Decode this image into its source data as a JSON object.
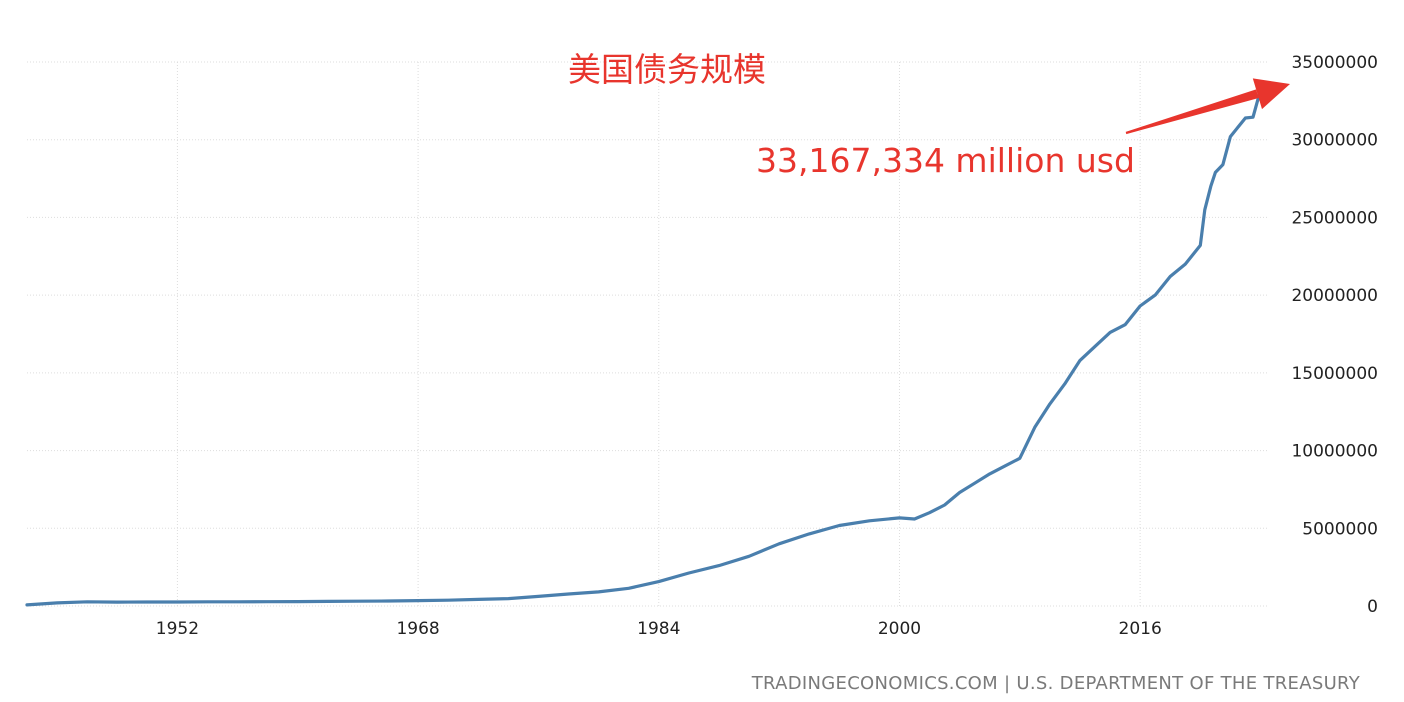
{
  "chart_data": {
    "type": "line",
    "title": "美国债务规模",
    "annotation": "33,167,334 million usd",
    "source": "TRADINGECONOMICS.COM | U.S. DEPARTMENT OF THE TREASURY",
    "xlabel": "",
    "ylabel": "",
    "xlim": [
      1942,
      2024.5
    ],
    "ylim": [
      0,
      35000000
    ],
    "x_ticks": [
      1952,
      1968,
      1984,
      2000,
      2016
    ],
    "y_ticks": [
      0,
      5000000,
      10000000,
      15000000,
      20000000,
      25000000,
      30000000,
      35000000
    ],
    "y_tick_labels": [
      "0",
      "5000000",
      "10000000",
      "15000000",
      "20000000",
      "25000000",
      "30000000",
      "35000000"
    ],
    "grid": true,
    "y_axis_side": "right",
    "series": [
      {
        "values": [
          [
            1942.0,
            72000
          ],
          [
            1944.0,
            201000
          ],
          [
            1946.0,
            269000
          ],
          [
            1948.0,
            252000
          ],
          [
            1950.0,
            257000
          ],
          [
            1952.0,
            259000
          ],
          [
            1954.0,
            271000
          ],
          [
            1956.0,
            272000
          ],
          [
            1958.0,
            276000
          ],
          [
            1960.0,
            286000
          ],
          [
            1962.0,
            298000
          ],
          [
            1964.0,
            311000
          ],
          [
            1966.0,
            320000
          ],
          [
            1968.0,
            347000
          ],
          [
            1970.0,
            370000
          ],
          [
            1972.0,
            427000
          ],
          [
            1974.0,
            475000
          ],
          [
            1976.0,
            620000
          ],
          [
            1978.0,
            771000
          ],
          [
            1980.0,
            907000
          ],
          [
            1982.0,
            1140000
          ],
          [
            1984.0,
            1570000
          ],
          [
            1986.0,
            2120000
          ],
          [
            1988.0,
            2600000
          ],
          [
            1990.0,
            3200000
          ],
          [
            1992.0,
            4000000
          ],
          [
            1994.0,
            4640000
          ],
          [
            1996.0,
            5180000
          ],
          [
            1998.0,
            5480000
          ],
          [
            2000.0,
            5670000
          ],
          [
            2001.0,
            5600000
          ],
          [
            2002.0,
            6000000
          ],
          [
            2003.0,
            6500000
          ],
          [
            2004.0,
            7300000
          ],
          [
            2005.0,
            7900000
          ],
          [
            2006.0,
            8500000
          ],
          [
            2007.0,
            9000000
          ],
          [
            2008.0,
            9500000
          ],
          [
            2008.5,
            10500000
          ],
          [
            2009.0,
            11500000
          ],
          [
            2010.0,
            13000000
          ],
          [
            2011.0,
            14300000
          ],
          [
            2012.0,
            15800000
          ],
          [
            2013.0,
            16700000
          ],
          [
            2014.0,
            17600000
          ],
          [
            2015.0,
            18100000
          ],
          [
            2016.0,
            19300000
          ],
          [
            2017.0,
            20000000
          ],
          [
            2018.0,
            21200000
          ],
          [
            2019.0,
            22000000
          ],
          [
            2020.0,
            23200000
          ],
          [
            2020.3,
            25500000
          ],
          [
            2020.7,
            27000000
          ],
          [
            2021.0,
            27900000
          ],
          [
            2021.5,
            28400000
          ],
          [
            2022.0,
            30200000
          ],
          [
            2022.5,
            30800000
          ],
          [
            2023.0,
            31400000
          ],
          [
            2023.5,
            31450000
          ],
          [
            2023.8,
            32500000
          ],
          [
            2024.0,
            33167334
          ]
        ]
      }
    ],
    "line_color": "#4a7fad",
    "title_color": "#e8352d",
    "annotation_color": "#e8352d",
    "arrow_color": "#e8352d",
    "grid_color": "#dddddd"
  }
}
